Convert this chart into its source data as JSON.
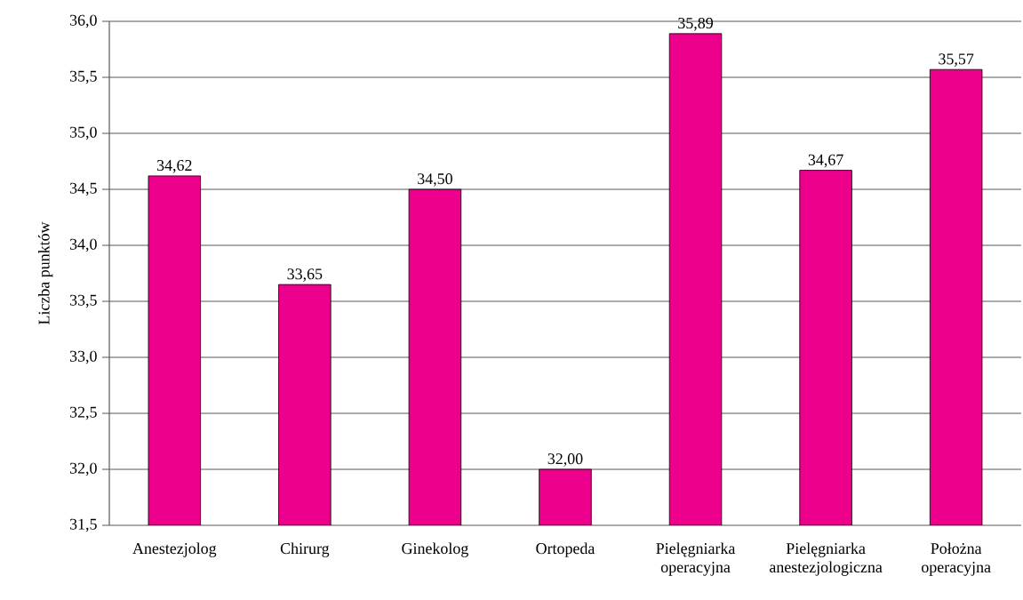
{
  "chart_data": {
    "type": "bar",
    "ylabel": "Liczba punktów",
    "categories": [
      "Anestezjolog",
      "Chirurg",
      "Ginekolog",
      "Ortopeda",
      "Pielęgniarka operacyjna",
      "Pielęgniarka anestezjologiczna",
      "Położna operacyjna"
    ],
    "values": [
      34.62,
      33.65,
      34.5,
      32.0,
      35.89,
      34.67,
      35.57
    ],
    "value_labels": [
      "34,62",
      "33,65",
      "34,50",
      "32,00",
      "35,89",
      "34,67",
      "35,57"
    ],
    "color": "#ec008c",
    "ylim": [
      31.5,
      36.0
    ],
    "yticks": [
      {
        "value": 31.5,
        "label": "31,5"
      },
      {
        "value": 32.0,
        "label": "32,0"
      },
      {
        "value": 32.5,
        "label": "32,5"
      },
      {
        "value": 33.0,
        "label": "33,0"
      },
      {
        "value": 33.5,
        "label": "33,5"
      },
      {
        "value": 34.0,
        "label": "34,0"
      },
      {
        "value": 34.5,
        "label": "34,5"
      },
      {
        "value": 35.0,
        "label": "35,0"
      },
      {
        "value": 35.5,
        "label": "35,5"
      },
      {
        "value": 36.0,
        "label": "36,0"
      }
    ],
    "grid": "y"
  }
}
